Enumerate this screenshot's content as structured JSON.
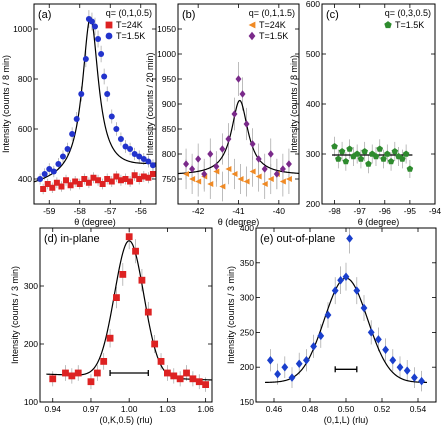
{
  "chart_data": [
    {
      "type": "scatter",
      "label": "(a)",
      "q_label": "q= (0,1,0.5)",
      "xlabel": "θ (degree)",
      "ylabel": "Intensity (counts / 8 min)",
      "xlim": [
        -59.5,
        -55.5
      ],
      "ylim": [
        300,
        1100
      ],
      "xticks": [
        -59,
        -58,
        -57,
        -56
      ],
      "yticks": [
        400,
        600,
        800,
        1000
      ],
      "series": [
        {
          "name": "T=24K",
          "marker": "square",
          "color": "#dd2222",
          "x": [
            -59.2,
            -59.05,
            -58.9,
            -58.75,
            -58.6,
            -58.45,
            -58.3,
            -58.15,
            -58.0,
            -57.85,
            -57.7,
            -57.55,
            -57.4,
            -57.25,
            -57.1,
            -56.95,
            -56.8,
            -56.65,
            -56.5,
            -56.35,
            -56.2,
            -56.05,
            -55.9,
            -55.75,
            -55.6
          ],
          "y": [
            360,
            380,
            365,
            385,
            370,
            395,
            375,
            390,
            380,
            400,
            385,
            405,
            395,
            380,
            400,
            390,
            410,
            395,
            400,
            390,
            415,
            400,
            410,
            405,
            420
          ]
        },
        {
          "name": "T=1.5K",
          "marker": "circle",
          "color": "#2233cc",
          "x": [
            -59.3,
            -59.15,
            -59.0,
            -58.85,
            -58.7,
            -58.55,
            -58.4,
            -58.25,
            -58.1,
            -57.95,
            -57.8,
            -57.7,
            -57.6,
            -57.5,
            -57.4,
            -57.3,
            -57.2,
            -57.1,
            -56.95,
            -56.8,
            -56.65,
            -56.5,
            -56.35,
            -56.2,
            -56.05,
            -55.9,
            -55.75,
            -55.6
          ],
          "y": [
            400,
            420,
            440,
            430,
            460,
            490,
            520,
            580,
            640,
            740,
            880,
            1040,
            1030,
            1010,
            960,
            900,
            810,
            740,
            650,
            600,
            560,
            530,
            520,
            500,
            490,
            480,
            470,
            455
          ]
        }
      ],
      "fit": {
        "center": -57.65,
        "amplitude": 640,
        "hwhm": 0.32,
        "background": [
          -59.5,
          370,
          -55.5,
          450
        ]
      },
      "legend_placement": "top-right"
    },
    {
      "type": "scatter",
      "label": "(b)",
      "q_label": "q= (0,1,1.5)",
      "xlabel": "θ (degree)",
      "ylabel": "Intensity (counts / 20 min)",
      "xlim": [
        -42.5,
        -39.5
      ],
      "ylim": [
        700,
        1100
      ],
      "xticks": [
        -42,
        -41,
        -40
      ],
      "yticks": [
        750,
        800,
        850,
        900,
        950,
        1000,
        1050
      ],
      "series": [
        {
          "name": "T=24K",
          "marker": "triangle-left",
          "color": "#f08a24",
          "x": [
            -42.3,
            -42.15,
            -42.0,
            -41.85,
            -41.7,
            -41.55,
            -41.4,
            -41.25,
            -41.1,
            -40.95,
            -40.8,
            -40.65,
            -40.5,
            -40.35,
            -40.2,
            -40.05,
            -39.9,
            -39.75
          ],
          "y": [
            760,
            750,
            745,
            755,
            740,
            765,
            735,
            770,
            760,
            750,
            745,
            765,
            755,
            740,
            750,
            760,
            745,
            750
          ]
        },
        {
          "name": "T=1.5K",
          "marker": "diamond",
          "color": "#7a2a8a",
          "x": [
            -42.3,
            -42.15,
            -42.0,
            -41.85,
            -41.7,
            -41.55,
            -41.4,
            -41.25,
            -41.1,
            -41.0,
            -40.9,
            -40.8,
            -40.65,
            -40.5,
            -40.35,
            -40.2,
            -40.05,
            -39.9,
            -39.75
          ],
          "y": [
            780,
            770,
            790,
            760,
            800,
            775,
            810,
            830,
            880,
            950,
            920,
            860,
            820,
            790,
            770,
            800,
            760,
            770,
            780
          ]
        }
      ],
      "fit": {
        "center": -40.97,
        "amplitude": 150,
        "hwhm": 0.25,
        "background": [
          -42.5,
          757,
          -39.5,
          757
        ]
      },
      "legend_placement": "top-right"
    },
    {
      "type": "scatter",
      "label": "(c)",
      "q_label": "q= (0,3,0.5)",
      "xlabel": "θ (degree)",
      "ylabel": "Intensity (counts / 8 min)",
      "xlim": [
        -98.5,
        -94
      ],
      "ylim": [
        200,
        600
      ],
      "xticks": [
        -98,
        -97,
        -96,
        -95,
        -94
      ],
      "yticks": [
        200,
        300,
        400,
        500,
        600
      ],
      "series": [
        {
          "name": "T=1.5K",
          "marker": "pentagon",
          "color": "#2e8b2e",
          "x": [
            -98.0,
            -97.85,
            -97.7,
            -97.55,
            -97.4,
            -97.25,
            -97.1,
            -96.95,
            -96.8,
            -96.65,
            -96.5,
            -96.35,
            -96.2,
            -96.05,
            -95.9,
            -95.75,
            -95.6,
            -95.45,
            -95.3,
            -95.15,
            -95.0
          ],
          "y": [
            315,
            290,
            305,
            285,
            310,
            295,
            300,
            290,
            305,
            280,
            300,
            295,
            310,
            290,
            300,
            285,
            305,
            295,
            290,
            300,
            270
          ]
        }
      ],
      "fit": {
        "center": -96.5,
        "amplitude": 0,
        "hwhm": 1,
        "background": [
          -98.1,
          298,
          -94.9,
          298
        ]
      },
      "legend_placement": "top-right"
    },
    {
      "type": "scatter",
      "label": "(d) in-plane",
      "xlabel": "(0,K,0.5) (rlu)",
      "ylabel": "Intensity (counts / 3 min)",
      "xlim": [
        0.93,
        1.065
      ],
      "ylim": [
        100,
        400
      ],
      "xticks": [
        0.94,
        0.97,
        1.0,
        1.03,
        1.06
      ],
      "xticklabels": [
        "0.94",
        "0.97",
        "1.00",
        "1.03",
        "1.06"
      ],
      "yticks": [
        100,
        200,
        300
      ],
      "series": [
        {
          "name": "",
          "marker": "square",
          "color": "#dd2222",
          "x": [
            0.94,
            0.95,
            0.955,
            0.96,
            0.97,
            0.975,
            0.98,
            0.985,
            0.99,
            0.995,
            1.0,
            1.005,
            1.01,
            1.015,
            1.02,
            1.025,
            1.03,
            1.035,
            1.04,
            1.045,
            1.05,
            1.055,
            1.06
          ],
          "y": [
            140,
            150,
            145,
            150,
            135,
            150,
            170,
            210,
            280,
            320,
            385,
            360,
            310,
            255,
            200,
            170,
            150,
            145,
            140,
            150,
            140,
            135,
            130
          ]
        }
      ],
      "fit": {
        "center": 1.0,
        "amplitude": 235,
        "hwhm": 0.0115,
        "background": [
          0.935,
          148,
          1.065,
          138
        ]
      },
      "resolution_bar": [
        0.985,
        1.015,
        150
      ]
    },
    {
      "type": "scatter",
      "label": "(e) out-of-plane",
      "xlabel": "(0,1,L) (rlu)",
      "ylabel": "Intensity (counts / 3 min)",
      "xlim": [
        0.45,
        0.55
      ],
      "ylim": [
        150,
        400
      ],
      "xticks": [
        0.46,
        0.48,
        0.5,
        0.52,
        0.54
      ],
      "xticklabels": [
        "0.46",
        "0.48",
        "0.50",
        "0.52",
        "0.54"
      ],
      "yticks": [
        150,
        200,
        250,
        300,
        350,
        400
      ],
      "series": [
        {
          "name": "",
          "marker": "diamond",
          "color": "#1a3fcc",
          "x": [
            0.458,
            0.462,
            0.466,
            0.47,
            0.474,
            0.478,
            0.482,
            0.486,
            0.49,
            0.494,
            0.497,
            0.5,
            0.502,
            0.506,
            0.51,
            0.514,
            0.518,
            0.522,
            0.526,
            0.53,
            0.534,
            0.538,
            0.542
          ],
          "y": [
            210,
            190,
            200,
            185,
            205,
            210,
            230,
            245,
            275,
            310,
            325,
            330,
            385,
            310,
            285,
            250,
            240,
            225,
            210,
            200,
            195,
            185,
            180
          ]
        }
      ],
      "fit": {
        "center": 0.5,
        "amplitude": 150,
        "hwhm": 0.012,
        "background": [
          0.455,
          178,
          0.545,
          178
        ]
      },
      "resolution_bar": [
        0.494,
        0.506,
        197
      ]
    }
  ]
}
